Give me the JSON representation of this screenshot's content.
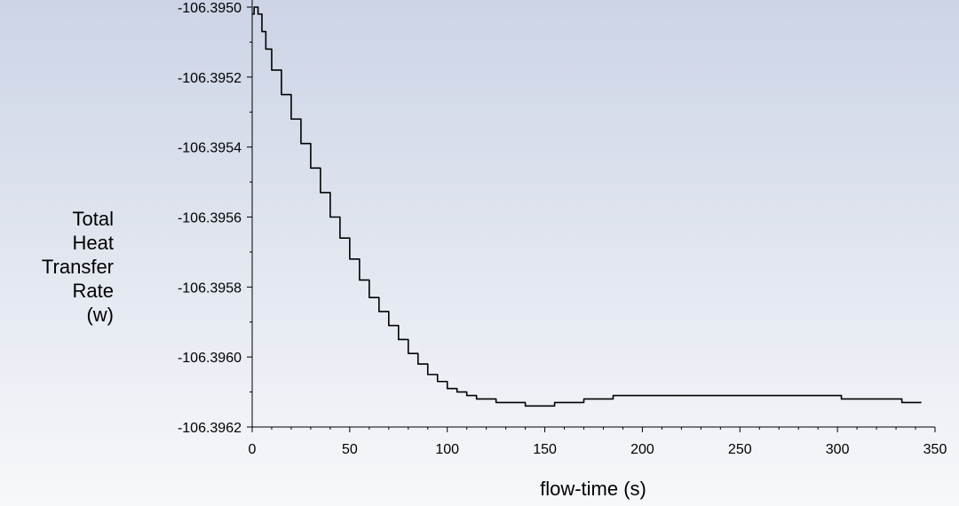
{
  "chart_data": {
    "type": "line",
    "title": "",
    "xlabel": "flow-time (s)",
    "ylabel_lines": [
      "Total",
      "Heat",
      "Transfer",
      "Rate",
      "(w)"
    ],
    "xlim": [
      0,
      350
    ],
    "ylim": [
      -106.3962,
      -106.395
    ],
    "x_ticks": [
      "0",
      "50",
      "100",
      "150",
      "200",
      "250",
      "300",
      "350"
    ],
    "y_ticks": [
      "-106.3962",
      "-106.3960",
      "-106.3958",
      "-106.3956",
      "-106.3954",
      "-106.3952",
      "-106.3950"
    ],
    "grid": false,
    "line_color": "#000000",
    "series": [
      {
        "x": [
          0,
          1,
          2,
          3,
          5,
          7,
          10,
          15,
          20,
          25,
          30,
          35,
          40,
          45,
          50,
          55,
          60,
          65,
          70,
          75,
          80,
          85,
          90,
          95,
          100,
          105,
          110,
          115,
          120,
          125,
          130,
          135,
          140,
          145,
          150,
          155,
          160,
          165,
          170,
          175,
          180,
          185,
          190,
          200,
          220,
          250,
          280,
          300,
          302,
          310,
          320,
          330,
          333,
          340,
          343
        ],
        "y": [
          -106.39502,
          -106.395,
          -106.395,
          -106.39502,
          -106.39507,
          -106.39512,
          -106.39518,
          -106.39525,
          -106.39532,
          -106.39539,
          -106.39546,
          -106.39553,
          -106.3956,
          -106.39566,
          -106.39572,
          -106.39578,
          -106.39583,
          -106.39587,
          -106.39591,
          -106.39595,
          -106.39599,
          -106.39602,
          -106.39605,
          -106.39607,
          -106.39609,
          -106.3961,
          -106.39611,
          -106.39612,
          -106.39612,
          -106.39613,
          -106.39613,
          -106.39613,
          -106.39614,
          -106.39614,
          -106.39614,
          -106.39613,
          -106.39613,
          -106.39613,
          -106.39612,
          -106.39612,
          -106.39612,
          -106.39611,
          -106.39611,
          -106.39611,
          -106.39611,
          -106.39611,
          -106.39611,
          -106.39611,
          -106.39612,
          -106.39612,
          -106.39612,
          -106.39612,
          -106.39613,
          -106.39613,
          -106.39613
        ]
      }
    ]
  }
}
